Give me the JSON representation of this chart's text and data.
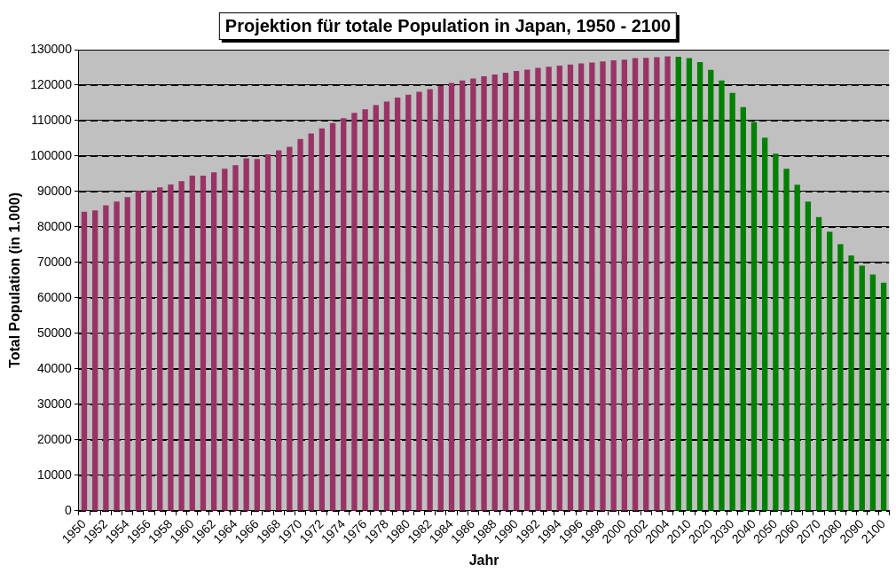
{
  "chart_data": {
    "type": "bar",
    "title": "Projektion für totale Population in Japan, 1950 - 2100",
    "xlabel": "Jahr",
    "ylabel": "Total Population (in 1.000)",
    "categories": [
      "1950",
      null,
      "1952",
      null,
      "1954",
      null,
      "1956",
      null,
      "1958",
      null,
      "1960",
      null,
      "1962",
      null,
      "1964",
      null,
      "1966",
      null,
      "1968",
      null,
      "1970",
      null,
      "1972",
      null,
      "1974",
      null,
      "1976",
      null,
      "1978",
      null,
      "1980",
      null,
      "1982",
      null,
      "1984",
      null,
      "1986",
      null,
      "1988",
      null,
      "1990",
      null,
      "1992",
      null,
      "1994",
      null,
      "1996",
      null,
      "1998",
      null,
      "2000",
      null,
      "2002",
      null,
      "2004",
      null,
      "2010",
      null,
      "2020",
      null,
      "2030",
      null,
      "2040",
      null,
      "2050",
      null,
      "2060",
      null,
      "2070",
      null,
      "2080",
      null,
      "2090",
      null,
      "2100"
    ],
    "values": [
      84300,
      84700,
      86100,
      87200,
      88400,
      90200,
      90300,
      91200,
      92000,
      92900,
      94500,
      94500,
      95400,
      96400,
      97400,
      99400,
      99200,
      100500,
      101600,
      102600,
      104800,
      106400,
      107800,
      109300,
      110700,
      112200,
      113200,
      114400,
      115400,
      116500,
      117300,
      118100,
      118900,
      119800,
      120600,
      121300,
      121900,
      122500,
      123000,
      123500,
      124000,
      124400,
      124900,
      125200,
      125500,
      125800,
      126100,
      126400,
      126700,
      127000,
      127200,
      127600,
      127700,
      127900,
      128100,
      128000,
      127600,
      126500,
      124300,
      121300,
      117800,
      113800,
      109600,
      105200,
      100700,
      96400,
      91900,
      87200,
      82800,
      78700,
      75200,
      72000,
      69100,
      66600,
      64300
    ],
    "colors": [
      "#993366",
      "#993366",
      "#993366",
      "#993366",
      "#993366",
      "#993366",
      "#993366",
      "#993366",
      "#993366",
      "#993366",
      "#993366",
      "#993366",
      "#993366",
      "#993366",
      "#993366",
      "#993366",
      "#993366",
      "#993366",
      "#993366",
      "#993366",
      "#993366",
      "#993366",
      "#993366",
      "#993366",
      "#993366",
      "#993366",
      "#993366",
      "#993366",
      "#993366",
      "#993366",
      "#993366",
      "#993366",
      "#993366",
      "#993366",
      "#993366",
      "#993366",
      "#993366",
      "#993366",
      "#993366",
      "#993366",
      "#993366",
      "#993366",
      "#993366",
      "#993366",
      "#993366",
      "#993366",
      "#993366",
      "#993366",
      "#993366",
      "#993366",
      "#993366",
      "#993366",
      "#993366",
      "#993366",
      "#993366",
      "#008000",
      "#008000",
      "#008000",
      "#008000",
      "#008000",
      "#008000",
      "#008000",
      "#008000",
      "#008000",
      "#008000",
      "#008000",
      "#008000",
      "#008000",
      "#008000",
      "#008000",
      "#008000",
      "#008000",
      "#008000",
      "#008000",
      "#008000"
    ],
    "ylim": [
      0,
      130000
    ],
    "yticks": [
      0,
      10000,
      20000,
      30000,
      40000,
      50000,
      60000,
      70000,
      80000,
      90000,
      100000,
      110000,
      120000,
      130000
    ],
    "grid": "y"
  }
}
